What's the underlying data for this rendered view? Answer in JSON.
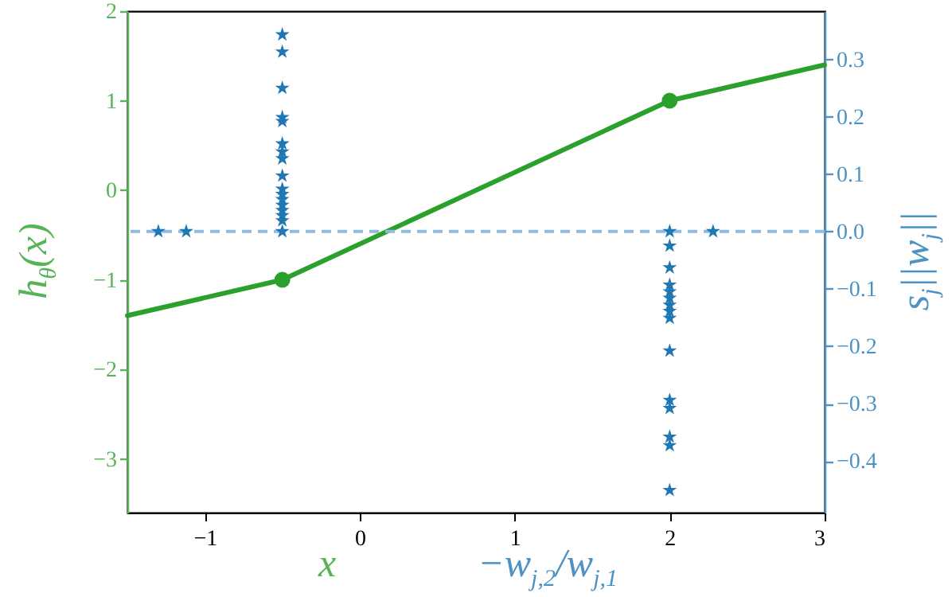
{
  "chart_data": {
    "type": "line",
    "xlabel": "x",
    "ylabel": "h$_{θ}$(x)",
    "y2label": "s$_{j}$||w$_{j}$||",
    "annotations": [
      "−w$_{j,2}$/w$_{j,1}$"
    ],
    "xlim": [
      -1.5,
      3
    ],
    "xticks": [
      -1,
      0,
      1,
      2,
      3
    ],
    "ylim": [
      -3.6,
      2
    ],
    "yticks": [
      -3,
      -2,
      -1,
      0,
      1,
      2
    ],
    "y2lim": [
      -0.49,
      0.384
    ],
    "y2ticks": [
      {
        "value": -0.4,
        "label": "−0.4"
      },
      {
        "value": -0.3,
        "label": "−0.3"
      },
      {
        "value": -0.2,
        "label": "−0.2"
      },
      {
        "value": -0.1,
        "label": "−0.1"
      },
      {
        "value": 0,
        "label": "0.0"
      },
      {
        "value": 0.1,
        "label": "0.1"
      },
      {
        "value": 0.2,
        "label": "0.2"
      },
      {
        "value": 0.3,
        "label": "0.3"
      }
    ],
    "ref_lines": [
      {
        "axis": "y2",
        "value": 0,
        "color": "#8fbbe0",
        "line_style": "dashed"
      }
    ],
    "series": [
      {
        "color": "#2ca02c",
        "marker": "none",
        "x": [
          -1.5,
          -0.5,
          2,
          3
        ],
        "values": [
          -1.4,
          -1,
          1,
          1.4
        ]
      },
      {
        "type": "scatter",
        "color": "#2ca02c",
        "marker": "circle",
        "x": [
          -0.5,
          2
        ],
        "values": [
          -1,
          1
        ]
      },
      {
        "type": "scatter",
        "axis": "y2",
        "color": "#1f77b4",
        "marker": "star",
        "x": [
          -1.3,
          -1.12,
          -0.5,
          -0.5,
          -0.5,
          -0.5,
          -0.5,
          -0.5,
          -0.5,
          -0.5,
          -0.5,
          -0.5,
          -0.5,
          -0.5,
          -0.5,
          -0.5,
          -0.5,
          -0.5,
          -0.5,
          2,
          2,
          2,
          2,
          2,
          2,
          2,
          2,
          2,
          2,
          2,
          2,
          2,
          2,
          2,
          2.28
        ],
        "values": [
          0,
          0,
          0.343,
          0.313,
          0.25,
          0.199,
          0.192,
          0.153,
          0.139,
          0.127,
          0.097,
          0.074,
          0.065,
          0.056,
          0.046,
          0.037,
          0.028,
          0.019,
          0,
          0,
          -0.025,
          -0.063,
          -0.093,
          -0.105,
          -0.116,
          -0.128,
          -0.139,
          -0.151,
          -0.208,
          -0.294,
          -0.308,
          -0.358,
          -0.373,
          -0.451,
          0
        ]
      }
    ]
  }
}
